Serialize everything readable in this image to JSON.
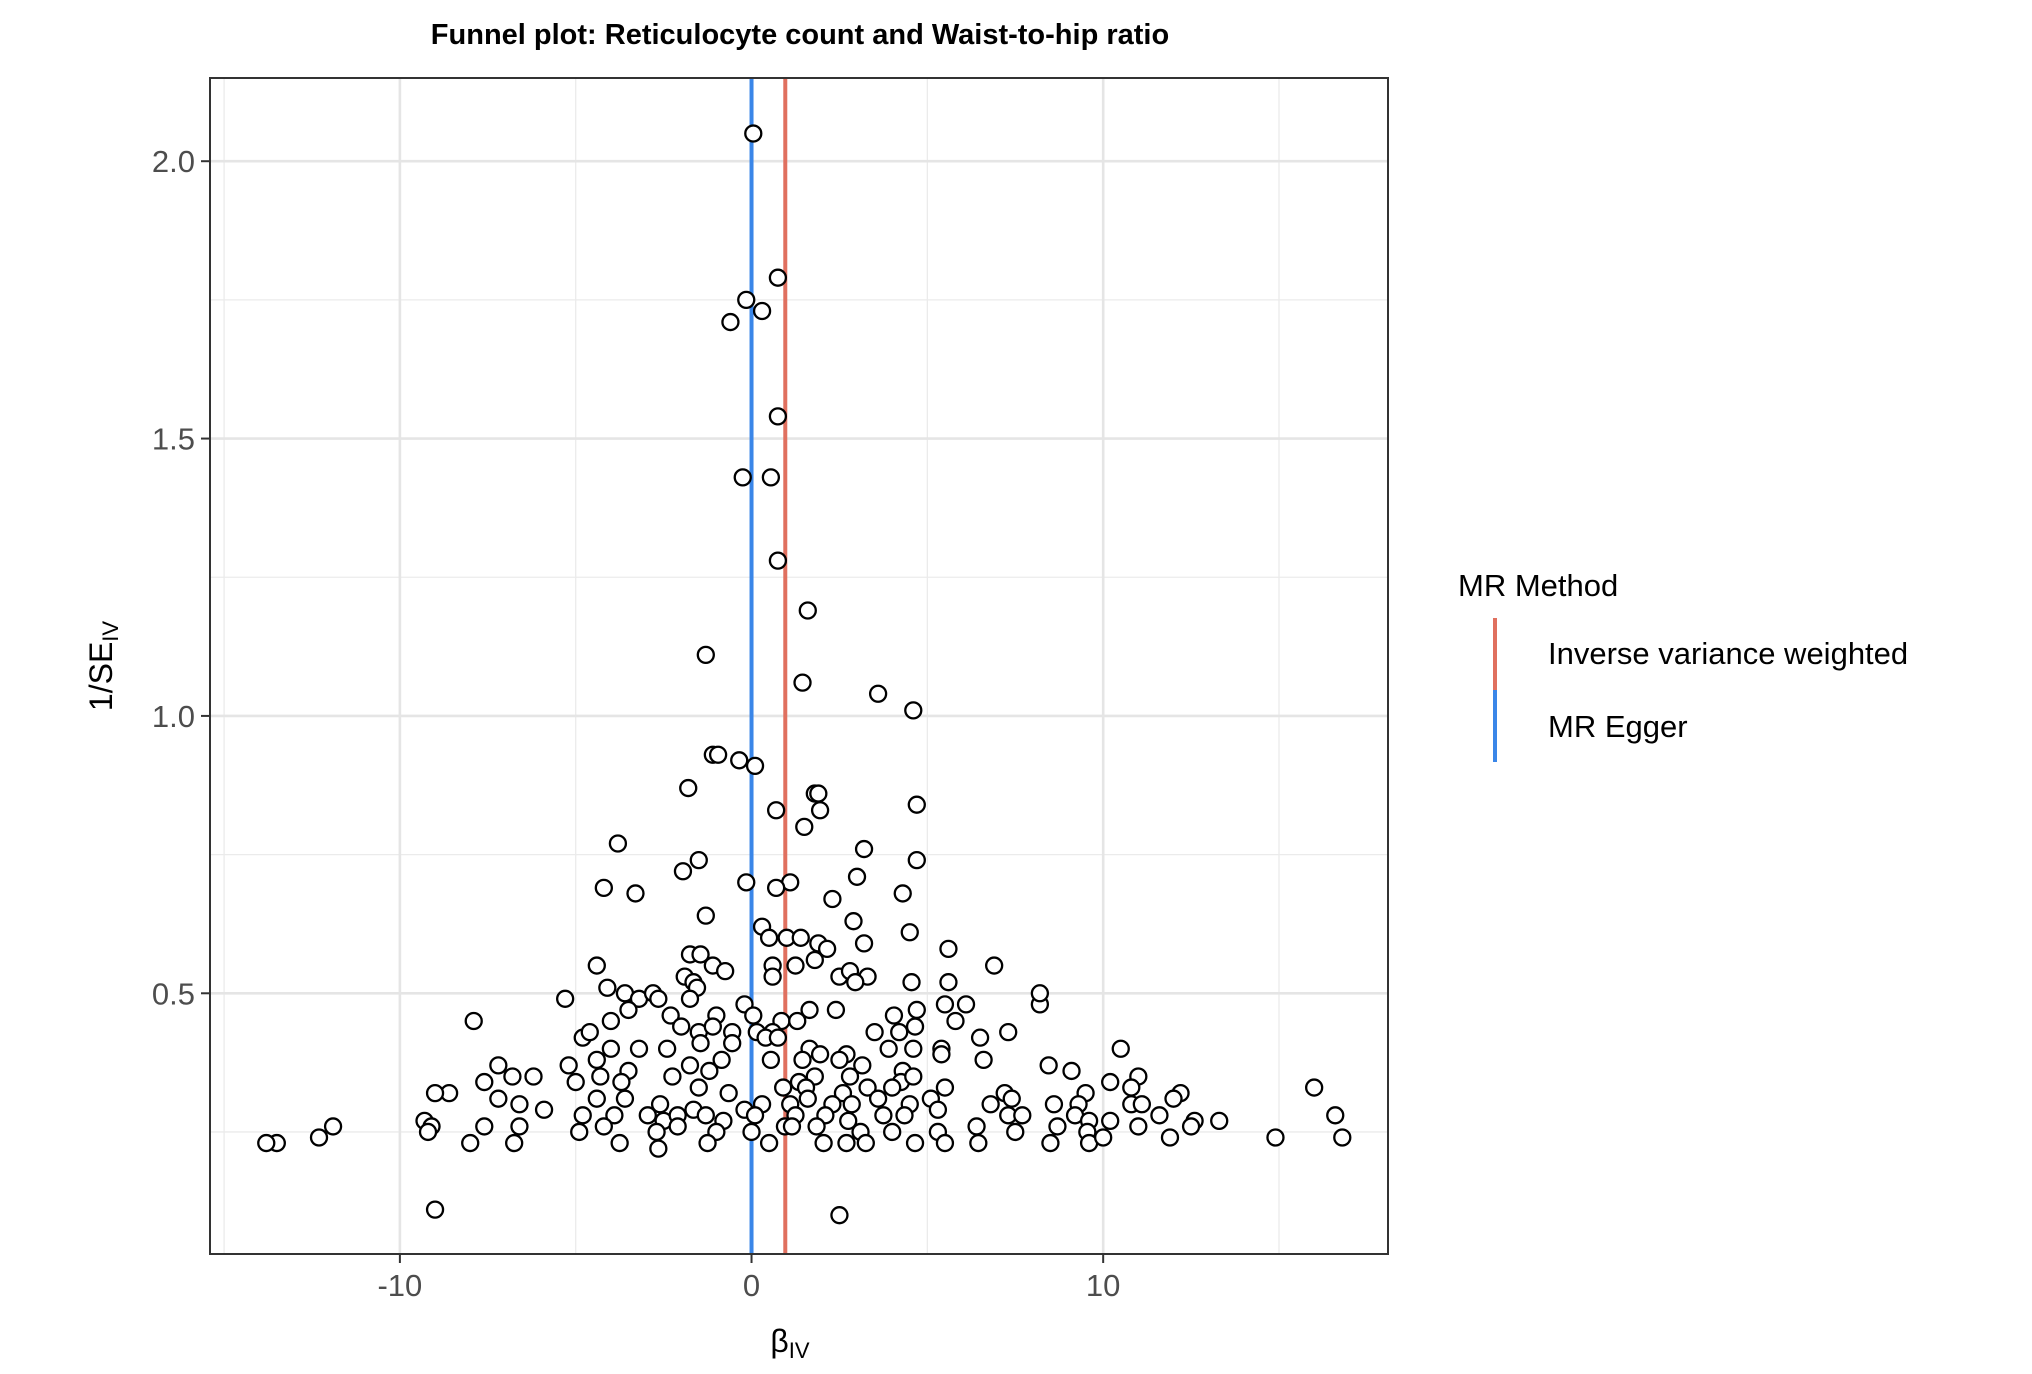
{
  "chart_data": {
    "type": "scatter",
    "title": "Funnel plot: Reticulocyte count and Waist-to-hip ratio",
    "xlabel": "β",
    "xlabel_sub": "IV",
    "ylabel": "1/SE",
    "ylabel_sub": "IV",
    "xlim": [
      -15.4,
      18.1
    ],
    "ylim": [
      0.03,
      2.15
    ],
    "x_ticks": [
      -10,
      0,
      10
    ],
    "x_tick_labels": [
      "-10",
      "0",
      "10"
    ],
    "y_ticks": [
      0.5,
      1.0,
      1.5,
      2.0
    ],
    "y_tick_labels": [
      "0.5",
      "1.0",
      "1.5",
      "2.0"
    ],
    "x_minor_ticks": [
      -15,
      -5,
      5,
      15
    ],
    "y_minor_ticks": [
      0.25,
      0.75,
      1.25,
      1.75
    ],
    "grid": true,
    "legend": {
      "title": "MR Method",
      "placement": "right",
      "entries": [
        {
          "label": "Inverse variance weighted",
          "color": "#E0705F"
        },
        {
          "label": "MR Egger",
          "color": "#3A86E8"
        }
      ]
    },
    "lines": [
      {
        "name": "Inverse variance weighted",
        "x": 0.96,
        "color": "#E0705F"
      },
      {
        "name": "MR Egger",
        "x": 0.0,
        "color": "#3A86E8"
      }
    ],
    "points": [
      [
        0.05,
        2.05
      ],
      [
        0.75,
        1.79
      ],
      [
        -0.15,
        1.75
      ],
      [
        0.3,
        1.73
      ],
      [
        -0.6,
        1.71
      ],
      [
        0.75,
        1.54
      ],
      [
        -0.25,
        1.43
      ],
      [
        0.55,
        1.43
      ],
      [
        0.75,
        1.28
      ],
      [
        1.6,
        1.19
      ],
      [
        -1.3,
        1.11
      ],
      [
        1.45,
        1.06
      ],
      [
        3.6,
        1.04
      ],
      [
        4.6,
        1.01
      ],
      [
        -1.1,
        0.93
      ],
      [
        -0.95,
        0.93
      ],
      [
        -0.35,
        0.92
      ],
      [
        0.1,
        0.91
      ],
      [
        -1.8,
        0.87
      ],
      [
        1.8,
        0.86
      ],
      [
        1.9,
        0.86
      ],
      [
        4.7,
        0.84
      ],
      [
        0.7,
        0.83
      ],
      [
        1.95,
        0.83
      ],
      [
        1.5,
        0.8
      ],
      [
        -3.8,
        0.77
      ],
      [
        3.2,
        0.76
      ],
      [
        4.7,
        0.74
      ],
      [
        -1.5,
        0.74
      ],
      [
        -1.95,
        0.72
      ],
      [
        3.0,
        0.71
      ],
      [
        -0.15,
        0.7
      ],
      [
        1.1,
        0.7
      ],
      [
        -4.2,
        0.69
      ],
      [
        -3.3,
        0.68
      ],
      [
        4.3,
        0.68
      ],
      [
        0.7,
        0.69
      ],
      [
        2.3,
        0.67
      ],
      [
        -1.3,
        0.64
      ],
      [
        0.3,
        0.62
      ],
      [
        2.9,
        0.63
      ],
      [
        4.5,
        0.61
      ],
      [
        0.5,
        0.6
      ],
      [
        1.0,
        0.6
      ],
      [
        1.4,
        0.6
      ],
      [
        1.9,
        0.59
      ],
      [
        2.15,
        0.58
      ],
      [
        3.2,
        0.59
      ],
      [
        5.6,
        0.58
      ],
      [
        -1.75,
        0.57
      ],
      [
        -1.45,
        0.57
      ],
      [
        -1.1,
        0.55
      ],
      [
        0.6,
        0.55
      ],
      [
        1.25,
        0.55
      ],
      [
        1.8,
        0.56
      ],
      [
        6.9,
        0.55
      ],
      [
        -4.4,
        0.55
      ],
      [
        -0.75,
        0.54
      ],
      [
        2.5,
        0.53
      ],
      [
        2.8,
        0.54
      ],
      [
        0.6,
        0.53
      ],
      [
        3.3,
        0.53
      ],
      [
        2.95,
        0.52
      ],
      [
        4.55,
        0.52
      ],
      [
        5.6,
        0.52
      ],
      [
        -1.9,
        0.53
      ],
      [
        -1.65,
        0.52
      ],
      [
        -1.55,
        0.51
      ],
      [
        -4.1,
        0.51
      ],
      [
        -3.6,
        0.5
      ],
      [
        -3.2,
        0.49
      ],
      [
        -2.8,
        0.5
      ],
      [
        -2.65,
        0.49
      ],
      [
        -5.3,
        0.49
      ],
      [
        -1.75,
        0.49
      ],
      [
        -0.2,
        0.48
      ],
      [
        5.5,
        0.48
      ],
      [
        8.2,
        0.48
      ],
      [
        6.1,
        0.48
      ],
      [
        8.2,
        0.5
      ],
      [
        -3.5,
        0.47
      ],
      [
        -2.3,
        0.46
      ],
      [
        -1.0,
        0.46
      ],
      [
        0.05,
        0.46
      ],
      [
        0.85,
        0.45
      ],
      [
        1.3,
        0.45
      ],
      [
        1.65,
        0.47
      ],
      [
        2.4,
        0.47
      ],
      [
        4.05,
        0.46
      ],
      [
        4.7,
        0.47
      ],
      [
        -4.0,
        0.45
      ],
      [
        -2.0,
        0.44
      ],
      [
        -1.5,
        0.43
      ],
      [
        -1.1,
        0.44
      ],
      [
        -0.55,
        0.43
      ],
      [
        0.15,
        0.43
      ],
      [
        0.6,
        0.43
      ],
      [
        3.5,
        0.43
      ],
      [
        4.2,
        0.43
      ],
      [
        4.65,
        0.44
      ],
      [
        5.8,
        0.45
      ],
      [
        7.3,
        0.43
      ],
      [
        -4.8,
        0.42
      ],
      [
        -4.6,
        0.43
      ],
      [
        -1.45,
        0.41
      ],
      [
        -0.55,
        0.41
      ],
      [
        0.4,
        0.42
      ],
      [
        0.75,
        0.42
      ],
      [
        1.65,
        0.4
      ],
      [
        1.95,
        0.39
      ],
      [
        2.7,
        0.39
      ],
      [
        3.9,
        0.4
      ],
      [
        4.6,
        0.4
      ],
      [
        5.4,
        0.4
      ],
      [
        6.5,
        0.42
      ],
      [
        10.5,
        0.4
      ],
      [
        -7.9,
        0.45
      ],
      [
        -3.2,
        0.4
      ],
      [
        -4.0,
        0.4
      ],
      [
        -2.4,
        0.4
      ],
      [
        -4.4,
        0.38
      ],
      [
        -1.75,
        0.37
      ],
      [
        -0.85,
        0.38
      ],
      [
        0.55,
        0.38
      ],
      [
        1.45,
        0.38
      ],
      [
        2.5,
        0.38
      ],
      [
        3.15,
        0.37
      ],
      [
        4.3,
        0.36
      ],
      [
        5.4,
        0.39
      ],
      [
        6.6,
        0.38
      ],
      [
        8.45,
        0.37
      ],
      [
        9.1,
        0.36
      ],
      [
        -7.2,
        0.37
      ],
      [
        -5.2,
        0.37
      ],
      [
        -3.5,
        0.36
      ],
      [
        -2.25,
        0.35
      ],
      [
        -1.2,
        0.36
      ],
      [
        1.35,
        0.34
      ],
      [
        1.8,
        0.35
      ],
      [
        2.8,
        0.35
      ],
      [
        4.25,
        0.34
      ],
      [
        4.6,
        0.35
      ],
      [
        11.0,
        0.35
      ],
      [
        -6.8,
        0.35
      ],
      [
        -6.2,
        0.35
      ],
      [
        -4.3,
        0.35
      ],
      [
        -3.7,
        0.34
      ],
      [
        -1.5,
        0.33
      ],
      [
        -0.65,
        0.32
      ],
      [
        0.9,
        0.33
      ],
      [
        1.55,
        0.33
      ],
      [
        2.6,
        0.32
      ],
      [
        3.3,
        0.33
      ],
      [
        4.0,
        0.33
      ],
      [
        5.5,
        0.33
      ],
      [
        7.2,
        0.32
      ],
      [
        9.5,
        0.32
      ],
      [
        10.2,
        0.34
      ],
      [
        10.8,
        0.33
      ],
      [
        12.2,
        0.32
      ],
      [
        16.0,
        0.33
      ],
      [
        -7.6,
        0.34
      ],
      [
        -6.6,
        0.3
      ],
      [
        -5.0,
        0.34
      ],
      [
        -4.4,
        0.31
      ],
      [
        -3.6,
        0.31
      ],
      [
        -2.6,
        0.3
      ],
      [
        -1.65,
        0.29
      ],
      [
        -0.2,
        0.29
      ],
      [
        0.3,
        0.3
      ],
      [
        1.1,
        0.3
      ],
      [
        1.6,
        0.31
      ],
      [
        2.3,
        0.3
      ],
      [
        2.85,
        0.3
      ],
      [
        3.6,
        0.31
      ],
      [
        4.5,
        0.3
      ],
      [
        5.1,
        0.31
      ],
      [
        6.8,
        0.3
      ],
      [
        7.4,
        0.31
      ],
      [
        8.6,
        0.3
      ],
      [
        9.3,
        0.3
      ],
      [
        10.8,
        0.3
      ],
      [
        11.1,
        0.3
      ],
      [
        12.0,
        0.31
      ],
      [
        -8.6,
        0.32
      ],
      [
        -9.0,
        0.32
      ],
      [
        -7.2,
        0.31
      ],
      [
        -5.9,
        0.29
      ],
      [
        -4.8,
        0.28
      ],
      [
        -3.9,
        0.28
      ],
      [
        -2.95,
        0.28
      ],
      [
        -2.5,
        0.27
      ],
      [
        -2.1,
        0.28
      ],
      [
        -1.3,
        0.28
      ],
      [
        -0.8,
        0.27
      ],
      [
        0.1,
        0.28
      ],
      [
        1.25,
        0.28
      ],
      [
        2.1,
        0.28
      ],
      [
        2.75,
        0.27
      ],
      [
        3.75,
        0.28
      ],
      [
        4.35,
        0.28
      ],
      [
        5.3,
        0.29
      ],
      [
        7.3,
        0.28
      ],
      [
        7.7,
        0.28
      ],
      [
        9.2,
        0.28
      ],
      [
        9.6,
        0.27
      ],
      [
        10.2,
        0.27
      ],
      [
        11.6,
        0.28
      ],
      [
        12.6,
        0.27
      ],
      [
        13.3,
        0.27
      ],
      [
        16.6,
        0.28
      ],
      [
        -9.3,
        0.27
      ],
      [
        -9.1,
        0.26
      ],
      [
        -7.6,
        0.26
      ],
      [
        -6.6,
        0.26
      ],
      [
        -4.9,
        0.25
      ],
      [
        -4.2,
        0.26
      ],
      [
        -2.7,
        0.25
      ],
      [
        -2.1,
        0.26
      ],
      [
        -1.0,
        0.25
      ],
      [
        0.0,
        0.25
      ],
      [
        0.95,
        0.26
      ],
      [
        1.85,
        0.26
      ],
      [
        3.1,
        0.25
      ],
      [
        4.0,
        0.25
      ],
      [
        5.3,
        0.25
      ],
      [
        6.4,
        0.26
      ],
      [
        7.5,
        0.25
      ],
      [
        8.7,
        0.26
      ],
      [
        9.55,
        0.25
      ],
      [
        11.0,
        0.26
      ],
      [
        12.5,
        0.26
      ],
      [
        -9.2,
        0.25
      ],
      [
        -11.9,
        0.26
      ],
      [
        -12.3,
        0.24
      ],
      [
        -8.0,
        0.23
      ],
      [
        -6.75,
        0.23
      ],
      [
        -3.75,
        0.23
      ],
      [
        -2.65,
        0.22
      ],
      [
        -1.25,
        0.23
      ],
      [
        0.5,
        0.23
      ],
      [
        1.15,
        0.26
      ],
      [
        2.05,
        0.23
      ],
      [
        2.7,
        0.23
      ],
      [
        3.25,
        0.23
      ],
      [
        4.65,
        0.23
      ],
      [
        5.5,
        0.23
      ],
      [
        6.45,
        0.23
      ],
      [
        8.5,
        0.23
      ],
      [
        9.6,
        0.23
      ],
      [
        10.0,
        0.24
      ],
      [
        11.9,
        0.24
      ],
      [
        14.9,
        0.24
      ],
      [
        16.8,
        0.24
      ],
      [
        -13.5,
        0.23
      ],
      [
        -13.8,
        0.23
      ],
      [
        -9.0,
        0.11
      ],
      [
        2.5,
        0.1
      ]
    ]
  }
}
